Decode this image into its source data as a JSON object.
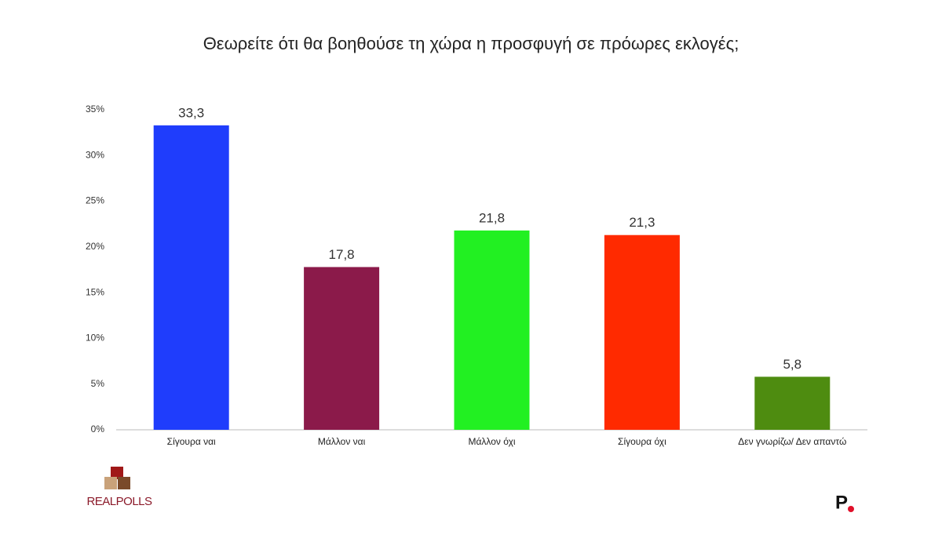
{
  "chart_data": {
    "type": "bar",
    "title": "Θεωρείτε ότι θα βοηθούσε τη χώρα η προσφυγή σε πρόωρες εκλογές;",
    "categories": [
      "Σίγουρα ναι",
      "Μάλλον ναι",
      "Μάλλον όχι",
      "Σίγουρα όχι",
      "Δεν γνωρίζω/ Δεν απαντώ"
    ],
    "values": [
      33.3,
      17.8,
      21.8,
      21.3,
      5.8
    ],
    "value_labels": [
      "33,3",
      "17,8",
      "21,8",
      "21,3",
      "5,8"
    ],
    "colors": [
      "#1f3dfc",
      "#8b1a4a",
      "#22f022",
      "#ff2a00",
      "#4e8c10"
    ],
    "ylim": [
      0,
      35
    ],
    "yticks": [
      {
        "value": 0,
        "label": "0%"
      },
      {
        "value": 5,
        "label": "5%"
      },
      {
        "value": 10,
        "label": "10%"
      },
      {
        "value": 15,
        "label": "15%"
      },
      {
        "value": 20,
        "label": "20%"
      },
      {
        "value": 25,
        "label": "25%"
      },
      {
        "value": 30,
        "label": "30%"
      },
      {
        "value": 35,
        "label": "35%"
      }
    ],
    "grid": false
  },
  "branding": {
    "left": "REALPOLLS",
    "right": "P"
  }
}
